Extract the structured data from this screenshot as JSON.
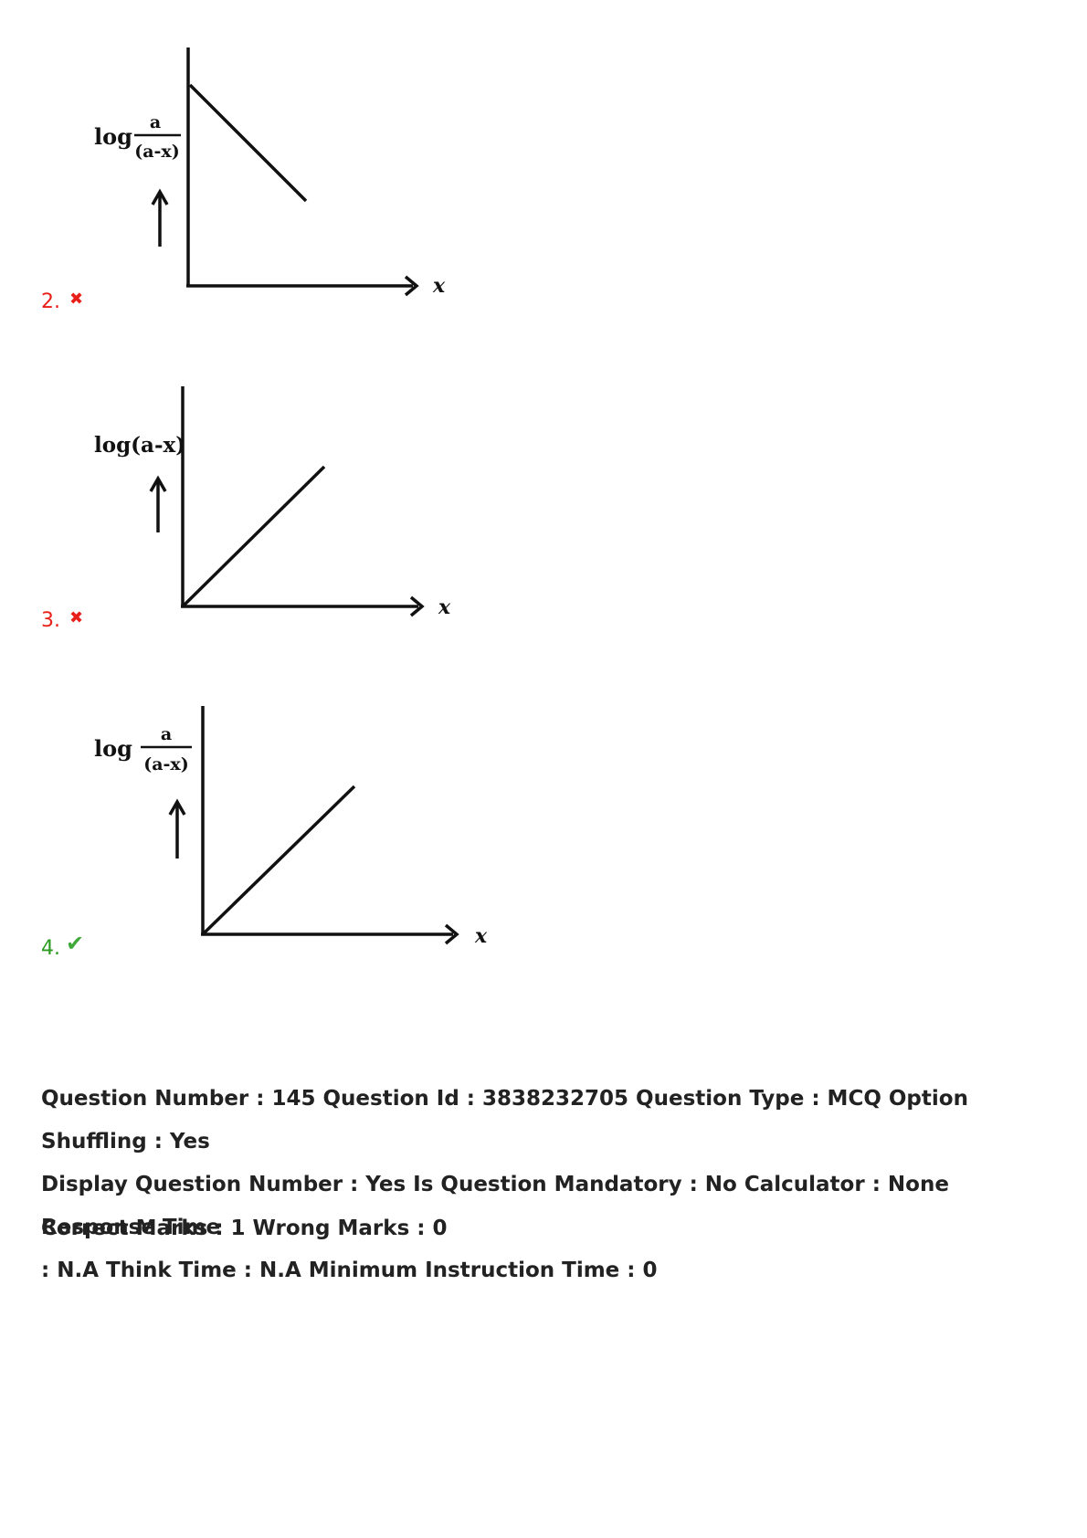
{
  "options": [
    {
      "number": "2.",
      "status": "wrong",
      "mark_glyph": "✖",
      "ylabel_prefix": "log",
      "ylabel_numerator": "a",
      "ylabel_denominator": "(a-x)",
      "xlabel": "x",
      "trend": "decreasing"
    },
    {
      "number": "3.",
      "status": "wrong",
      "mark_glyph": "✖",
      "ylabel_full": "log(a-x)",
      "xlabel": "x",
      "trend": "increasing"
    },
    {
      "number": "4.",
      "status": "correct",
      "mark_glyph": "✔",
      "ylabel_prefix": "log",
      "ylabel_numerator": "a",
      "ylabel_denominator": "(a-x)",
      "xlabel": "x",
      "trend": "increasing"
    }
  ],
  "question_meta": {
    "line1": "Question Number : 145 Question Id : 3838232705 Question Type : MCQ Option Shuffling : Yes",
    "line2": "Display Question Number : Yes Is Question Mandatory : No Calculator : None Response Time",
    "line3": ": N.A Think Time : N.A Minimum Instruction Time : 0",
    "marks": "Correct Marks : 1 Wrong Marks : 0"
  },
  "colors": {
    "wrong": "#e8201a",
    "correct": "#2b9a20"
  }
}
